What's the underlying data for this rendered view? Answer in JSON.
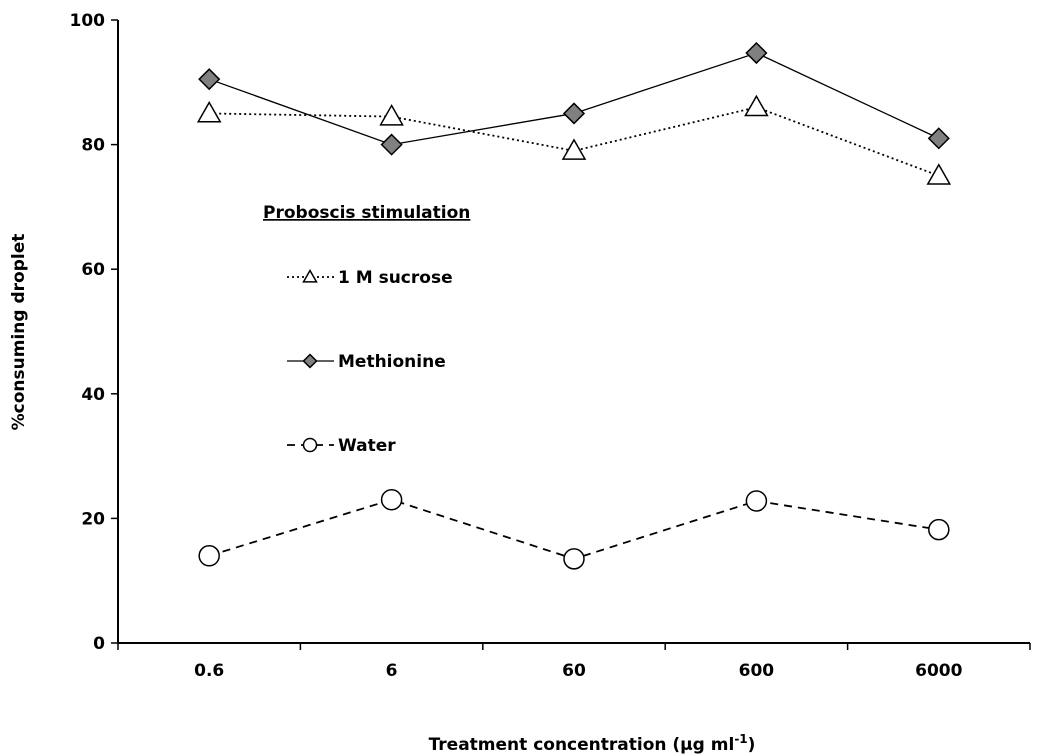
{
  "chart_data": {
    "type": "line",
    "categories": [
      "0.6",
      "6",
      "60",
      "600",
      "6000"
    ],
    "series": [
      {
        "name": "1 M sucrose",
        "values": [
          85,
          84.5,
          79,
          86,
          75
        ],
        "marker": "triangle",
        "line_style": "dotted",
        "marker_fill": "#ffffff"
      },
      {
        "name": "Methionine",
        "values": [
          90.5,
          80,
          85,
          94.7,
          81
        ],
        "marker": "diamond",
        "line_style": "solid",
        "marker_fill": "#808080"
      },
      {
        "name": "Water",
        "values": [
          14,
          23,
          13.5,
          22.8,
          18.2
        ],
        "marker": "circle",
        "line_style": "dashed",
        "marker_fill": "#ffffff"
      }
    ],
    "ylim": [
      0,
      100
    ],
    "yticks": [
      "0",
      "20",
      "40",
      "60",
      "80",
      "100"
    ],
    "ylabel": "%consuming droplet",
    "xlabel_text": "Treatment concentration (µg ml",
    "xlabel_sup": "-1",
    "xlabel_close": ")",
    "legend_title": "Proboscis stimulation",
    "grid": false
  }
}
